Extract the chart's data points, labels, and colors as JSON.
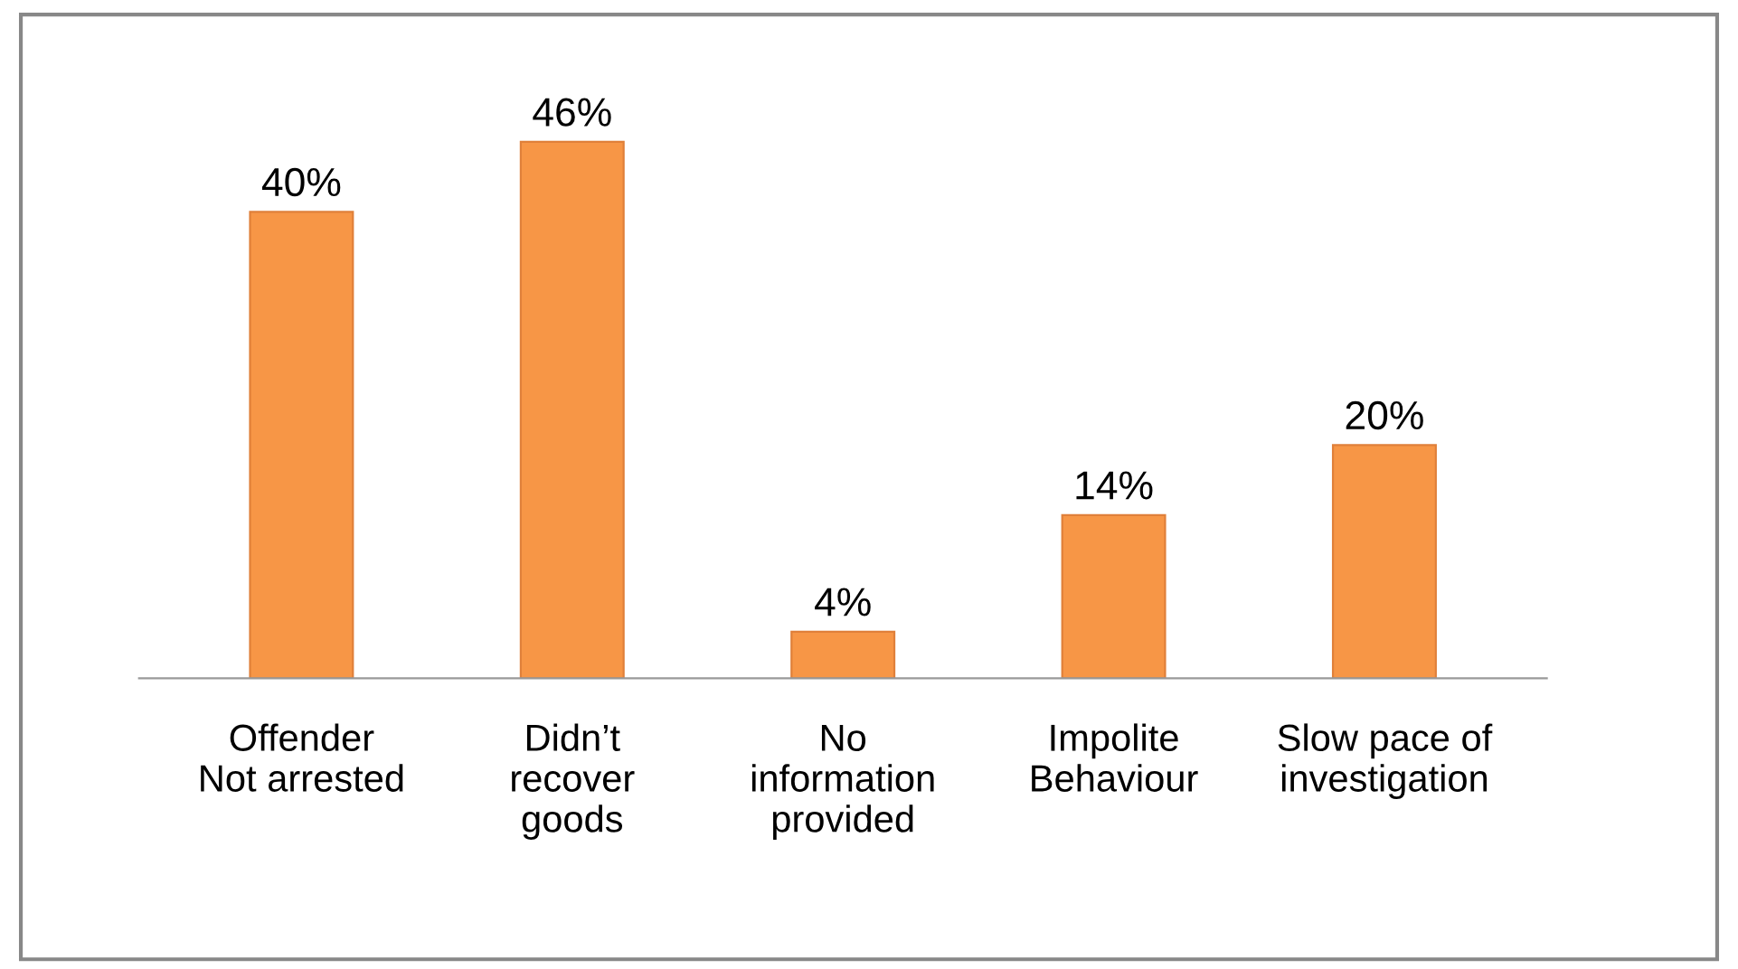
{
  "chart_data": {
    "type": "bar",
    "categories": [
      "Offender\nNot arrested",
      "Didn’t\nrecover\ngoods",
      "No\ninformation\nprovided",
      "Impolite\nBehaviour",
      "Slow pace of\ninvestigation"
    ],
    "values": [
      40,
      46,
      4,
      14,
      20
    ],
    "value_labels": [
      "40%",
      "46%",
      "4%",
      "14%",
      "20%"
    ],
    "color": "#f79646",
    "grid": false,
    "legend": false
  }
}
